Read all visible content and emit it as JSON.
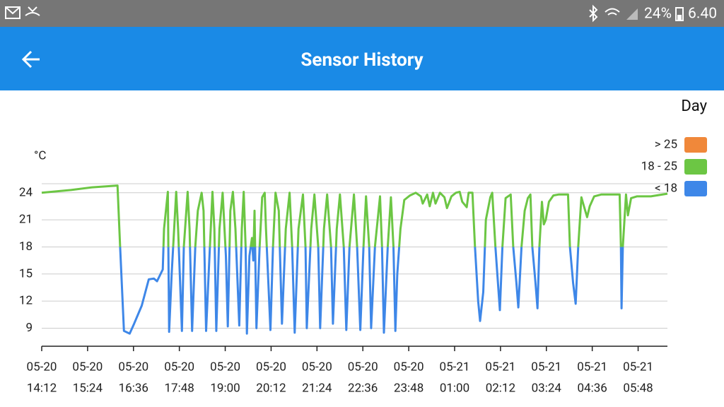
{
  "status_bar": {
    "battery": "24%",
    "time": "6.40"
  },
  "app_bar": {
    "title": "Sensor History"
  },
  "view": "Day",
  "chart_data": {
    "type": "line",
    "y_label": "°C",
    "ylim": [
      7,
      25
    ],
    "yticks": [
      9,
      12,
      15,
      18,
      21,
      24
    ],
    "xlim": [
      "05-20 14:12",
      "05-21 06:34"
    ],
    "xticks": [
      {
        "value": "05-20 14:12",
        "label": [
          "05-20",
          "14:12"
        ]
      },
      {
        "value": "05-20 15:24",
        "label": [
          "05-20",
          "15:24"
        ]
      },
      {
        "value": "05-20 16:36",
        "label": [
          "05-20",
          "16:36"
        ]
      },
      {
        "value": "05-20 17:48",
        "label": [
          "05-20",
          "17:48"
        ]
      },
      {
        "value": "05-20 19:00",
        "label": [
          "05-20",
          "19:00"
        ]
      },
      {
        "value": "05-20 20:12",
        "label": [
          "05-20",
          "20:12"
        ]
      },
      {
        "value": "05-20 21:24",
        "label": [
          "05-20",
          "21:24"
        ]
      },
      {
        "value": "05-20 22:36",
        "label": [
          "05-20",
          "22:36"
        ]
      },
      {
        "value": "05-20 23:48",
        "label": [
          "05-20",
          "23:48"
        ]
      },
      {
        "value": "05-21 01:00",
        "label": [
          "05-21",
          "01:00"
        ]
      },
      {
        "value": "05-21 02:12",
        "label": [
          "05-21",
          "02:12"
        ]
      },
      {
        "value": "05-21 03:24",
        "label": [
          "05-21",
          "03:24"
        ]
      },
      {
        "value": "05-21 04:36",
        "label": [
          "05-21",
          "04:36"
        ]
      },
      {
        "value": "05-21 05:48",
        "label": [
          "05-21",
          "05:48"
        ]
      }
    ],
    "grid": true,
    "ranges": [
      {
        "label": "> 25",
        "min": 25,
        "color": "#f0883a"
      },
      {
        "label": "18 - 25",
        "min": 18,
        "max": 25,
        "color": "#6cc644"
      },
      {
        "label": "< 18",
        "max": 18,
        "color": "#3e87e8"
      }
    ],
    "x": [
      "05-20 14:12",
      "05-20 14:58",
      "05-20 15:31",
      "05-20 16:11",
      "05-20 16:15",
      "05-20 16:21",
      "05-20 16:30",
      "05-20 16:37",
      "05-20 16:49",
      "05-20 17:00",
      "05-20 17:08",
      "05-20 17:13",
      "05-20 17:22",
      "05-20 17:24",
      "05-20 17:30",
      "05-20 17:32",
      "05-20 17:36",
      "05-20 17:43",
      "05-20 17:46",
      "05-20 17:52",
      "05-20 17:55",
      "05-20 18:01",
      "05-20 18:04",
      "05-20 18:08",
      "05-20 18:13",
      "05-20 18:17",
      "05-20 18:23",
      "05-20 18:26",
      "05-20 18:30",
      "05-20 18:34",
      "05-20 18:40",
      "05-20 18:43",
      "05-20 18:46",
      "05-20 18:51",
      "05-20 18:56",
      "05-20 19:01",
      "05-20 19:04",
      "05-20 19:08",
      "05-20 19:12",
      "05-20 19:16",
      "05-20 19:22",
      "05-20 19:26",
      "05-20 19:29",
      "05-20 19:32",
      "05-20 19:34",
      "05-20 19:38",
      "05-20 19:42",
      "05-20 19:44",
      "05-20 19:46",
      "05-20 19:49",
      "05-20 19:54",
      "05-20 19:58",
      "05-20 20:02",
      "05-20 20:04",
      "05-20 20:11",
      "05-20 20:15",
      "05-20 20:19",
      "05-20 20:24",
      "05-20 20:29",
      "05-20 20:35",
      "05-20 20:41",
      "05-20 20:45",
      "05-20 20:49",
      "05-20 20:55",
      "05-20 21:02",
      "05-20 21:06",
      "05-20 21:08",
      "05-20 21:15",
      "05-20 21:20",
      "05-20 21:26",
      "05-20 21:29",
      "05-20 21:35",
      "05-20 21:40",
      "05-20 21:46",
      "05-20 21:49",
      "05-20 21:55",
      "05-20 22:00",
      "05-20 22:06",
      "05-20 22:10",
      "05-20 22:15",
      "05-20 22:22",
      "05-20 22:27",
      "05-20 22:32",
      "05-20 22:37",
      "05-20 22:41",
      "05-20 22:46",
      "05-20 22:49",
      "05-20 22:55",
      "05-20 23:03",
      "05-20 23:06",
      "05-20 23:09",
      "05-20 23:15",
      "05-20 23:20",
      "05-20 23:24",
      "05-20 23:27",
      "05-20 23:30",
      "05-20 23:35",
      "05-20 23:41",
      "05-20 23:50",
      "05-20 23:59",
      "05-21 00:07",
      "05-21 00:10",
      "05-21 00:17",
      "05-21 00:21",
      "05-21 00:26",
      "05-21 00:30",
      "05-21 00:37",
      "05-21 00:44",
      "05-21 00:48",
      "05-21 00:55",
      "05-21 01:02",
      "05-21 01:08",
      "05-21 01:12",
      "05-21 01:19",
      "05-21 01:22",
      "05-21 01:28",
      "05-21 01:32",
      "05-21 01:37",
      "05-21 01:40",
      "05-21 01:45",
      "05-21 01:49",
      "05-21 01:56",
      "05-21 01:59",
      "05-21 02:04",
      "05-21 02:08",
      "05-21 02:11",
      "05-21 02:15",
      "05-21 02:20",
      "05-21 02:28",
      "05-21 02:32",
      "05-21 02:37",
      "05-21 02:40",
      "05-21 02:45",
      "05-21 02:50",
      "05-21 02:55",
      "05-21 02:59",
      "05-21 03:02",
      "05-21 03:07",
      "05-21 03:10",
      "05-21 03:13",
      "05-21 03:17",
      "05-21 03:20",
      "05-21 03:23",
      "05-21 03:28",
      "05-21 03:35",
      "05-21 03:43",
      "05-21 03:58",
      "05-21 04:01",
      "05-21 04:06",
      "05-21 04:10",
      "05-21 04:14",
      "05-21 04:19",
      "05-21 04:23",
      "05-21 04:28",
      "05-21 04:32",
      "05-21 04:39",
      "05-21 04:50",
      "05-21 05:12",
      "05-21 05:19",
      "05-21 05:21",
      "05-21 05:22",
      "05-21 05:24",
      "05-21 05:29",
      "05-21 05:32",
      "05-21 05:37",
      "05-21 05:46",
      "05-21 06:08",
      "05-21 06:34"
    ],
    "values": [
      24.0,
      24.3,
      24.6,
      24.8,
      18,
      8.7,
      8.4,
      9.5,
      11.5,
      14.4,
      14.5,
      14.2,
      15.5,
      20,
      24.1,
      8.6,
      15,
      24.1,
      20,
      8.7,
      18,
      24.1,
      20,
      8.7,
      18,
      22,
      24,
      22,
      8.7,
      15,
      24.1,
      20,
      8.7,
      20,
      24,
      17,
      9.2,
      22,
      24.1,
      20,
      9.3,
      20,
      24.1,
      18,
      8.4,
      17,
      19,
      16.5,
      22,
      9,
      18,
      23.5,
      24,
      20,
      8.8,
      18,
      24,
      22,
      9.5,
      20,
      24,
      18,
      8.5,
      20,
      23.8,
      18,
      9,
      20,
      23.8,
      18,
      9,
      20,
      23.8,
      18,
      9.5,
      20,
      23.8,
      18,
      8.8,
      18,
      23.8,
      18,
      8.8,
      18,
      23.6,
      18,
      9,
      18,
      23.6,
      18,
      8.5,
      18,
      23.5,
      18,
      8.7,
      15,
      20,
      23.2,
      23.7,
      24,
      23.6,
      22.8,
      23.8,
      22.5,
      24,
      22.8,
      24,
      23.5,
      22.3,
      23.6,
      24,
      24.1,
      23,
      22.4,
      24,
      24,
      18,
      12,
      9.8,
      13,
      21,
      23.5,
      24,
      18,
      14,
      11,
      18,
      23.4,
      23.8,
      18,
      14,
      11.3,
      18,
      22,
      23.4,
      23.8,
      18,
      14,
      11.2,
      18,
      23,
      20.5,
      21,
      23,
      23.7,
      23.8,
      23.8,
      18,
      14,
      11.7,
      18,
      23.5,
      22.5,
      21.3,
      22.5,
      23.6,
      23.8,
      23.8,
      23.8,
      18,
      11.2,
      18,
      23.8,
      21.5,
      23.4,
      23.6,
      23.6,
      23.9
    ]
  }
}
